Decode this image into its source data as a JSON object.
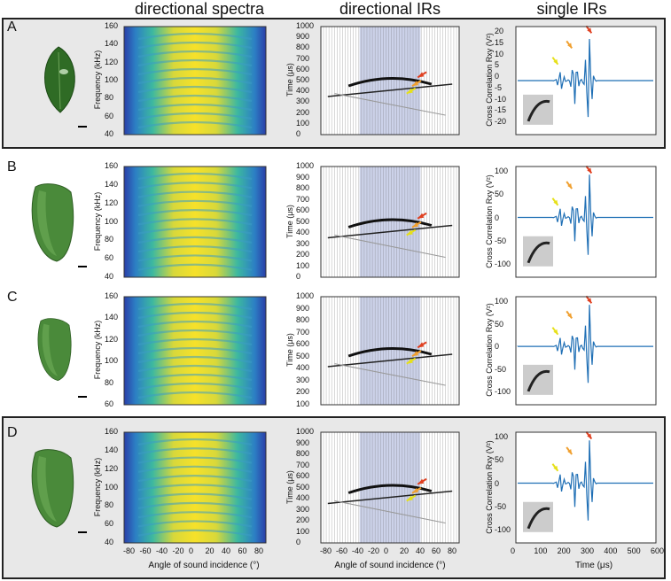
{
  "headers": {
    "spectra": "directional spectra",
    "dirirs": "directional IRs",
    "singleirs": "single IRs"
  },
  "axes": {
    "freq_label": "Frequency (kHz)",
    "time_label": "Time (μs)",
    "cc_label": "Cross Correlation Rxy (V²)",
    "angle_label": "Angle of sound incidence (°)",
    "time_x_label": "Time (μs)",
    "angle_ticks": [
      "-80",
      "-60",
      "-40",
      "-20",
      "0",
      "20",
      "40",
      "60",
      "80"
    ],
    "time_x_ticks": [
      "0",
      "100",
      "200",
      "300",
      "400",
      "500",
      "600"
    ]
  },
  "rows": [
    {
      "letter": "A",
      "freq_ticks": [
        "160",
        "140",
        "120",
        "100",
        "80",
        "60",
        "40"
      ],
      "time_ticks": [
        "1000",
        "900",
        "800",
        "700",
        "600",
        "500",
        "400",
        "300",
        "200",
        "100",
        "0"
      ],
      "cc_ticks": [
        "20",
        "15",
        "10",
        "5",
        "0",
        "-5",
        "-10",
        "-15",
        "-20"
      ]
    },
    {
      "letter": "B",
      "freq_ticks": [
        "160",
        "140",
        "120",
        "100",
        "80",
        "60",
        "40"
      ],
      "time_ticks": [
        "1000",
        "900",
        "800",
        "700",
        "600",
        "500",
        "400",
        "300",
        "200",
        "100",
        "0"
      ],
      "cc_ticks": [
        "100",
        "50",
        "0",
        "-50",
        "-100"
      ]
    },
    {
      "letter": "C",
      "freq_ticks": [
        "160",
        "140",
        "120",
        "100",
        "80",
        "60"
      ],
      "time_ticks": [
        "1000",
        "900",
        "800",
        "700",
        "600",
        "500",
        "400",
        "300",
        "200",
        "100"
      ],
      "cc_ticks": [
        "100",
        "50",
        "0",
        "-50",
        "-100"
      ]
    },
    {
      "letter": "D",
      "freq_ticks": [
        "160",
        "140",
        "120",
        "100",
        "80",
        "60",
        "40"
      ],
      "time_ticks": [
        "1000",
        "900",
        "800",
        "700",
        "600",
        "500",
        "400",
        "300",
        "200",
        "100",
        "0"
      ],
      "cc_ticks": [
        "100",
        "50",
        "0",
        "-50",
        "-100"
      ]
    }
  ],
  "colors": {
    "arrow_yellow": "#e6e01a",
    "arrow_orange": "#f0a030",
    "arrow_red": "#e04020",
    "signal": "#1f6fb5",
    "leaf_green": "#3d7a2e"
  }
}
